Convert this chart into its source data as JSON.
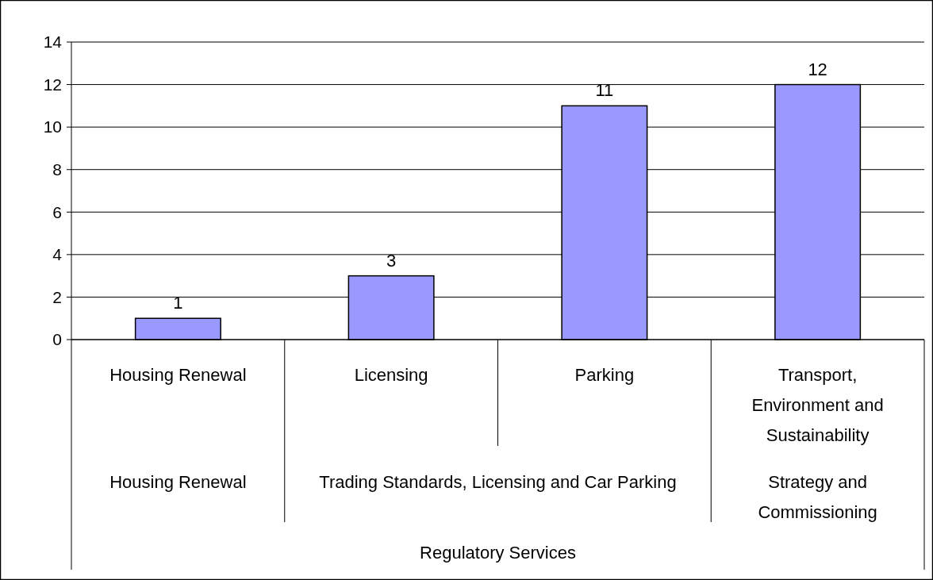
{
  "chart_data": {
    "type": "bar",
    "categories": [
      "Housing Renewal",
      "Licensing",
      "Parking",
      "Transport, Environment and Sustainability"
    ],
    "values": [
      1,
      3,
      11,
      12
    ],
    "color": "#9999ff",
    "ylim": [
      0,
      14
    ],
    "yticks": [
      0,
      2,
      4,
      6,
      8,
      10,
      12,
      14
    ],
    "grid": "y",
    "data_labels": true,
    "annotations": [
      "Housing Renewal",
      "Trading Standards, Licensing and Car Parking",
      "Strategy and Commissioning",
      "Regulatory Services"
    ]
  }
}
